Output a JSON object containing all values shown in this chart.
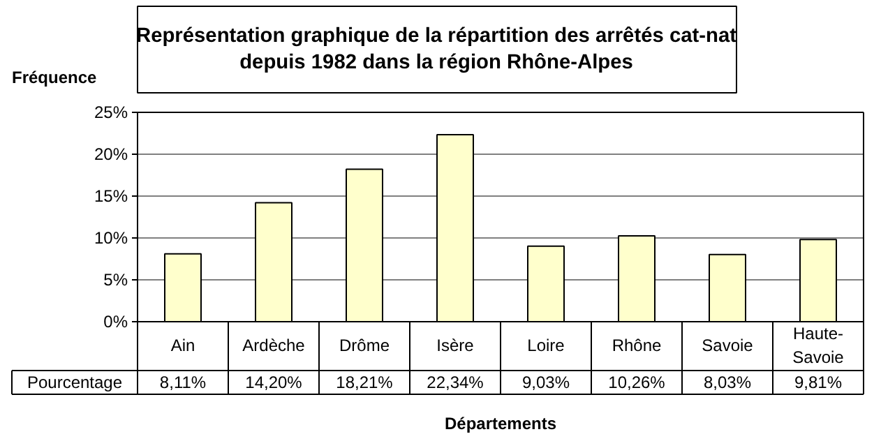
{
  "chart_data": {
    "type": "bar",
    "title": "Représentation graphique de la répartition des arrêtés cat-nat\ndepuis 1982 dans la région Rhône-Alpes",
    "ylabel": "Fréquence",
    "xlabel": "Départements",
    "categories": [
      "Ain",
      "Ardèche",
      "Drôme",
      "Isère",
      "Loire",
      "Rhône",
      "Savoie",
      "Haute-Savoie"
    ],
    "values": [
      8.11,
      14.2,
      18.21,
      22.34,
      9.03,
      10.26,
      8.03,
      9.81
    ],
    "value_labels": [
      "8,11%",
      "14,20%",
      "18,21%",
      "22,34%",
      "9,03%",
      "10,26%",
      "8,03%",
      "9,81%"
    ],
    "annotations": [
      "Pourcentage"
    ],
    "color": "#ffffcc",
    "ylim": [
      0,
      25
    ],
    "yticks": [
      {
        "value": 0,
        "label": "0%"
      },
      {
        "value": 5,
        "label": "5%"
      },
      {
        "value": 10,
        "label": "10%"
      },
      {
        "value": 15,
        "label": "15%"
      },
      {
        "value": 20,
        "label": "20%"
      },
      {
        "value": 25,
        "label": "25%"
      }
    ],
    "grid": "y"
  }
}
